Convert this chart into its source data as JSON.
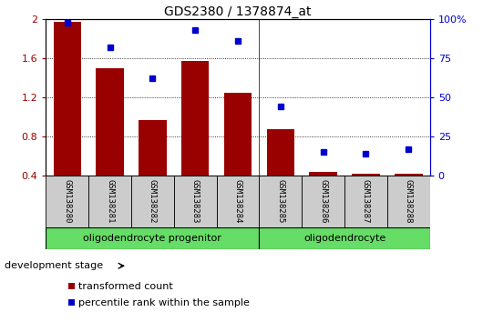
{
  "title": "GDS2380 / 1378874_at",
  "samples": [
    "GSM138280",
    "GSM138281",
    "GSM138282",
    "GSM138283",
    "GSM138284",
    "GSM138285",
    "GSM138286",
    "GSM138287",
    "GSM138288"
  ],
  "transformed_count": [
    1.97,
    1.5,
    0.97,
    1.57,
    1.25,
    0.875,
    0.44,
    0.42,
    0.42
  ],
  "percentile_rank": [
    98,
    82,
    62,
    93,
    86,
    44,
    15,
    14,
    17
  ],
  "ylim_left": [
    0.4,
    2.0
  ],
  "ylim_right": [
    0,
    100
  ],
  "yticks_left": [
    0.4,
    0.8,
    1.2,
    1.6,
    2.0
  ],
  "yticks_right": [
    0,
    25,
    50,
    75,
    100
  ],
  "ytick_labels_right": [
    "0",
    "25",
    "50",
    "75",
    "100%"
  ],
  "bar_color": "#990000",
  "dot_color": "#0000cc",
  "grid_color": "#000000",
  "group1_label": "oligodendrocyte progenitor",
  "group2_label": "oligodendrocyte",
  "group1_indices": [
    0,
    1,
    2,
    3,
    4
  ],
  "group2_indices": [
    5,
    6,
    7,
    8
  ],
  "group_bg_color": "#66dd66",
  "sample_bg_color": "#cccccc",
  "legend_red_label": "transformed count",
  "legend_blue_label": "percentile rank within the sample",
  "dev_stage_label": "development stage",
  "bar_bottom": 0.4,
  "bar_width": 0.65
}
